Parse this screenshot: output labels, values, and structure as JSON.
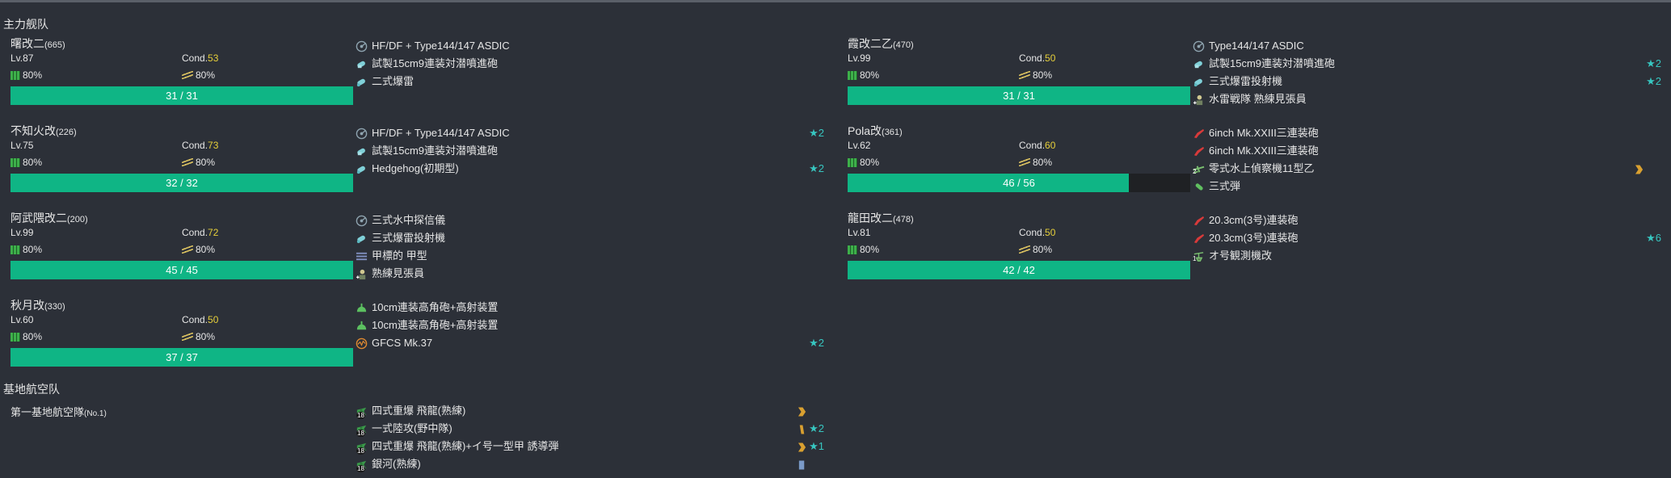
{
  "sections": {
    "main_fleet": "主力舰队",
    "base_air": "基地航空队"
  },
  "ships": [
    {
      "name": "曙改二",
      "id": "(665)",
      "lv": "Lv.87",
      "cond_label": "Cond.",
      "cond": "53",
      "fuel": "80%",
      "ammo": "80%",
      "hp": "31 / 31",
      "hp_ratio": 1.0,
      "equips": [
        {
          "icon": "sonar-icon",
          "label": "HF/DF + Type144/147 ASDIC",
          "star": ""
        },
        {
          "icon": "aa-shell-icon",
          "label": "試製15cm9連装対潜噴進砲",
          "star": ""
        },
        {
          "icon": "depth-charge-icon",
          "label": "二式爆雷",
          "star": ""
        }
      ]
    },
    {
      "name": "不知火改",
      "id": "(226)",
      "lv": "Lv.75",
      "cond_label": "Cond.",
      "cond": "73",
      "fuel": "80%",
      "ammo": "80%",
      "hp": "32 / 32",
      "hp_ratio": 1.0,
      "equips": [
        {
          "icon": "sonar-icon",
          "label": "HF/DF + Type144/147 ASDIC",
          "star": "★2"
        },
        {
          "icon": "aa-shell-icon",
          "label": "試製15cm9連装対潜噴進砲",
          "star": ""
        },
        {
          "icon": "depth-charge-icon",
          "label": "Hedgehog(初期型)",
          "star": "★2"
        }
      ]
    },
    {
      "name": "阿武隈改二",
      "id": "(200)",
      "lv": "Lv.99",
      "cond_label": "Cond.",
      "cond": "72",
      "fuel": "80%",
      "ammo": "80%",
      "hp": "45 / 45",
      "hp_ratio": 1.0,
      "equips": [
        {
          "icon": "sonar-icon",
          "label": "三式水中探信儀",
          "star": ""
        },
        {
          "icon": "depth-charge-icon",
          "label": "三式爆雷投射機",
          "star": ""
        },
        {
          "icon": "torpedo-tube-icon",
          "label": "甲標的 甲型",
          "star": ""
        },
        {
          "icon": "lookout-icon",
          "label": "熟練見張員",
          "star": ""
        }
      ]
    },
    {
      "name": "秋月改",
      "id": "(330)",
      "lv": "Lv.60",
      "cond_label": "Cond.",
      "cond": "50",
      "fuel": "80%",
      "ammo": "80%",
      "hp": "37 / 37",
      "hp_ratio": 1.0,
      "equips": [
        {
          "icon": "hagun-icon",
          "label": "10cm連装高角砲+高射装置",
          "star": ""
        },
        {
          "icon": "hagun-icon",
          "label": "10cm連装高角砲+高射装置",
          "star": ""
        },
        {
          "icon": "aa-director-icon",
          "label": "GFCS Mk.37",
          "star": "★2"
        }
      ]
    },
    {
      "name": "霞改二乙",
      "id": "(470)",
      "lv": "Lv.99",
      "cond_label": "Cond.",
      "cond": "50",
      "fuel": "80%",
      "ammo": "80%",
      "hp": "31 / 31",
      "hp_ratio": 1.0,
      "equips": [
        {
          "icon": "sonar-icon",
          "label": "Type144/147 ASDIC",
          "star": ""
        },
        {
          "icon": "aa-shell-icon",
          "label": "試製15cm9連装対潜噴進砲",
          "star": "★2"
        },
        {
          "icon": "depth-charge-icon",
          "label": "三式爆雷投射機",
          "star": "★2"
        },
        {
          "icon": "lookout-icon",
          "label": "水雷戦隊 熟練見張員",
          "star": ""
        }
      ]
    },
    {
      "name": "Pola改",
      "id": "(361)",
      "lv": "Lv.62",
      "cond_label": "Cond.",
      "cond": "60",
      "fuel": "80%",
      "ammo": "80%",
      "hp": "46 / 56",
      "hp_ratio": 0.8214,
      "equips": [
        {
          "icon": "main-gun-icon",
          "label": "6inch Mk.XXIII三連装砲",
          "star": ""
        },
        {
          "icon": "main-gun-icon",
          "label": "6inch Mk.XXIII三連装砲",
          "star": ""
        },
        {
          "icon": "seaplane-icon",
          "label": "零式水上偵察機11型乙",
          "star": "",
          "count": "2",
          "prof": "chevron"
        },
        {
          "icon": "shell-icon",
          "label": "三式弾",
          "star": ""
        }
      ]
    },
    {
      "name": "龍田改二",
      "id": "(478)",
      "lv": "Lv.81",
      "cond_label": "Cond.",
      "cond": "50",
      "fuel": "80%",
      "ammo": "80%",
      "hp": "42 / 42",
      "hp_ratio": 1.0,
      "equips": [
        {
          "icon": "main-gun-icon",
          "label": "20.3cm(3号)連装砲",
          "star": ""
        },
        {
          "icon": "main-gun-icon",
          "label": "20.3cm(3号)連装砲",
          "star": "★6"
        },
        {
          "icon": "autogyro-icon",
          "label": "オ号観測機改",
          "star": "",
          "count": "1"
        }
      ]
    }
  ],
  "base": {
    "name": "第一基地航空隊",
    "no": "(No.1)",
    "squadrons": [
      {
        "icon": "land-bomber-icon",
        "count": "18",
        "label": "四式重爆 飛龍(熟練)",
        "star": "",
        "prof": "chevron"
      },
      {
        "icon": "land-bomber-icon",
        "count": "18",
        "label": "一式陸攻(野中隊)",
        "star": "★2",
        "prof": "bar"
      },
      {
        "icon": "land-bomber-icon",
        "count": "18",
        "label": "四式重爆 飛龍(熟練)+イ号一型甲 誘導弾",
        "star": "★1",
        "prof": "chevron"
      },
      {
        "icon": "land-bomber-icon",
        "count": "18",
        "label": "銀河(熟練)",
        "star": "",
        "prof": "box"
      }
    ]
  },
  "colors": {
    "hp": "#0fb585",
    "cond": "#e6cf3a",
    "star": "#37c6c0",
    "prof": "#d9a030"
  }
}
